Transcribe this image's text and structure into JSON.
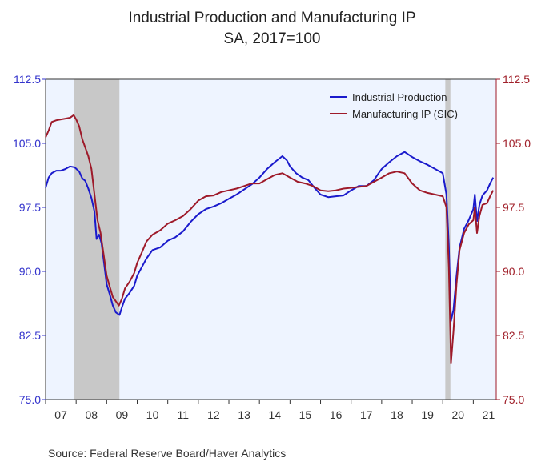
{
  "chart_data": {
    "type": "line",
    "title": "Industrial Production and Manufacturing IP",
    "subtitle": "SA, 2017=100",
    "source": "Source:  Federal Reserve Board/Haver Analytics",
    "ylim": [
      75.0,
      112.5
    ],
    "y_ticks": [
      "112.5",
      "105.0",
      "97.5",
      "90.0",
      "82.5",
      "75.0"
    ],
    "x_tick_labels": [
      "07",
      "08",
      "09",
      "10",
      "11",
      "12",
      "13",
      "14",
      "15",
      "16",
      "17",
      "18",
      "19",
      "20",
      "21"
    ],
    "x_range": [
      2007.0,
      2021.75
    ],
    "recessions": [
      [
        2007.917,
        2009.417
      ],
      [
        2020.083,
        2020.25
      ]
    ],
    "grid": false,
    "legend_position": "top-right",
    "colors": {
      "industrial": "#1a1acc",
      "manufacturing": "#9e1a2a",
      "plot_bg": "#eef4ff",
      "recession": "#c8c8c8"
    },
    "series": [
      {
        "name": "Industrial Production",
        "color": "#1a1acc",
        "points": [
          [
            2007.0,
            99.8
          ],
          [
            2007.1,
            101.0
          ],
          [
            2007.2,
            101.5
          ],
          [
            2007.35,
            101.8
          ],
          [
            2007.5,
            101.8
          ],
          [
            2007.65,
            102.0
          ],
          [
            2007.8,
            102.3
          ],
          [
            2007.95,
            102.2
          ],
          [
            2008.1,
            101.7
          ],
          [
            2008.2,
            100.9
          ],
          [
            2008.3,
            100.6
          ],
          [
            2008.4,
            99.7
          ],
          [
            2008.5,
            98.6
          ],
          [
            2008.6,
            97.0
          ],
          [
            2008.67,
            93.8
          ],
          [
            2008.75,
            94.3
          ],
          [
            2008.83,
            93.3
          ],
          [
            2008.92,
            90.8
          ],
          [
            2009.0,
            88.5
          ],
          [
            2009.1,
            87.3
          ],
          [
            2009.2,
            86.0
          ],
          [
            2009.3,
            85.2
          ],
          [
            2009.42,
            84.9
          ],
          [
            2009.5,
            85.8
          ],
          [
            2009.6,
            86.8
          ],
          [
            2009.75,
            87.5
          ],
          [
            2009.9,
            88.3
          ],
          [
            2010.0,
            89.5
          ],
          [
            2010.15,
            90.5
          ],
          [
            2010.3,
            91.5
          ],
          [
            2010.5,
            92.5
          ],
          [
            2010.75,
            92.8
          ],
          [
            2011.0,
            93.6
          ],
          [
            2011.25,
            94.0
          ],
          [
            2011.5,
            94.7
          ],
          [
            2011.75,
            95.8
          ],
          [
            2012.0,
            96.7
          ],
          [
            2012.25,
            97.3
          ],
          [
            2012.5,
            97.6
          ],
          [
            2012.75,
            98.0
          ],
          [
            2013.0,
            98.5
          ],
          [
            2013.25,
            99.0
          ],
          [
            2013.5,
            99.6
          ],
          [
            2013.75,
            100.2
          ],
          [
            2014.0,
            101.0
          ],
          [
            2014.25,
            102.0
          ],
          [
            2014.5,
            102.8
          ],
          [
            2014.75,
            103.5
          ],
          [
            2014.9,
            103.0
          ],
          [
            2015.0,
            102.3
          ],
          [
            2015.2,
            101.5
          ],
          [
            2015.4,
            101.0
          ],
          [
            2015.6,
            100.7
          ],
          [
            2015.8,
            99.8
          ],
          [
            2016.0,
            99.0
          ],
          [
            2016.25,
            98.7
          ],
          [
            2016.5,
            98.8
          ],
          [
            2016.75,
            98.9
          ],
          [
            2017.0,
            99.5
          ],
          [
            2017.25,
            100.0
          ],
          [
            2017.5,
            100.0
          ],
          [
            2017.75,
            100.7
          ],
          [
            2017.9,
            101.5
          ],
          [
            2018.0,
            102.0
          ],
          [
            2018.25,
            102.8
          ],
          [
            2018.5,
            103.5
          ],
          [
            2018.75,
            104.0
          ],
          [
            2019.0,
            103.4
          ],
          [
            2019.25,
            102.9
          ],
          [
            2019.5,
            102.5
          ],
          [
            2019.75,
            102.0
          ],
          [
            2020.0,
            101.5
          ],
          [
            2020.12,
            99.0
          ],
          [
            2020.2,
            93.0
          ],
          [
            2020.27,
            84.2
          ],
          [
            2020.35,
            85.5
          ],
          [
            2020.45,
            89.5
          ],
          [
            2020.55,
            92.8
          ],
          [
            2020.7,
            95.0
          ],
          [
            2020.85,
            96.0
          ],
          [
            2021.0,
            97.3
          ],
          [
            2021.05,
            99.0
          ],
          [
            2021.12,
            95.9
          ],
          [
            2021.2,
            97.8
          ],
          [
            2021.3,
            98.9
          ],
          [
            2021.45,
            99.5
          ],
          [
            2021.55,
            100.3
          ],
          [
            2021.65,
            101.0
          ]
        ]
      },
      {
        "name": "Manufacturing IP (SIC)",
        "color": "#9e1a2a",
        "points": [
          [
            2007.0,
            105.7
          ],
          [
            2007.1,
            106.5
          ],
          [
            2007.2,
            107.5
          ],
          [
            2007.35,
            107.7
          ],
          [
            2007.5,
            107.8
          ],
          [
            2007.65,
            107.9
          ],
          [
            2007.8,
            108.0
          ],
          [
            2007.92,
            108.3
          ],
          [
            2008.0,
            107.8
          ],
          [
            2008.1,
            107.0
          ],
          [
            2008.2,
            105.5
          ],
          [
            2008.3,
            104.5
          ],
          [
            2008.4,
            103.5
          ],
          [
            2008.5,
            102.0
          ],
          [
            2008.6,
            99.0
          ],
          [
            2008.7,
            96.0
          ],
          [
            2008.8,
            94.5
          ],
          [
            2008.9,
            92.0
          ],
          [
            2009.0,
            89.5
          ],
          [
            2009.1,
            88.2
          ],
          [
            2009.2,
            87.0
          ],
          [
            2009.3,
            86.5
          ],
          [
            2009.4,
            86.0
          ],
          [
            2009.5,
            86.8
          ],
          [
            2009.6,
            88.0
          ],
          [
            2009.75,
            88.8
          ],
          [
            2009.9,
            89.8
          ],
          [
            2010.0,
            91.0
          ],
          [
            2010.15,
            92.2
          ],
          [
            2010.3,
            93.5
          ],
          [
            2010.5,
            94.3
          ],
          [
            2010.75,
            94.8
          ],
          [
            2011.0,
            95.6
          ],
          [
            2011.25,
            96.0
          ],
          [
            2011.5,
            96.5
          ],
          [
            2011.75,
            97.3
          ],
          [
            2012.0,
            98.3
          ],
          [
            2012.25,
            98.8
          ],
          [
            2012.5,
            98.9
          ],
          [
            2012.75,
            99.3
          ],
          [
            2013.0,
            99.5
          ],
          [
            2013.25,
            99.7
          ],
          [
            2013.5,
            100.0
          ],
          [
            2013.75,
            100.3
          ],
          [
            2014.0,
            100.3
          ],
          [
            2014.25,
            100.8
          ],
          [
            2014.5,
            101.3
          ],
          [
            2014.75,
            101.5
          ],
          [
            2015.0,
            101.0
          ],
          [
            2015.25,
            100.5
          ],
          [
            2015.5,
            100.3
          ],
          [
            2015.75,
            100.0
          ],
          [
            2016.0,
            99.5
          ],
          [
            2016.25,
            99.4
          ],
          [
            2016.5,
            99.5
          ],
          [
            2016.75,
            99.7
          ],
          [
            2017.0,
            99.8
          ],
          [
            2017.25,
            99.9
          ],
          [
            2017.5,
            100.0
          ],
          [
            2017.75,
            100.5
          ],
          [
            2018.0,
            101.0
          ],
          [
            2018.25,
            101.5
          ],
          [
            2018.5,
            101.7
          ],
          [
            2018.75,
            101.5
          ],
          [
            2019.0,
            100.3
          ],
          [
            2019.25,
            99.5
          ],
          [
            2019.5,
            99.2
          ],
          [
            2019.75,
            99.0
          ],
          [
            2020.0,
            98.8
          ],
          [
            2020.12,
            97.5
          ],
          [
            2020.2,
            90.5
          ],
          [
            2020.27,
            79.3
          ],
          [
            2020.35,
            83.0
          ],
          [
            2020.45,
            88.5
          ],
          [
            2020.55,
            92.5
          ],
          [
            2020.7,
            94.5
          ],
          [
            2020.85,
            95.5
          ],
          [
            2021.0,
            96.0
          ],
          [
            2021.05,
            97.5
          ],
          [
            2021.12,
            94.5
          ],
          [
            2021.2,
            96.5
          ],
          [
            2021.3,
            97.8
          ],
          [
            2021.45,
            98.0
          ],
          [
            2021.55,
            98.8
          ],
          [
            2021.65,
            99.5
          ]
        ]
      }
    ]
  }
}
